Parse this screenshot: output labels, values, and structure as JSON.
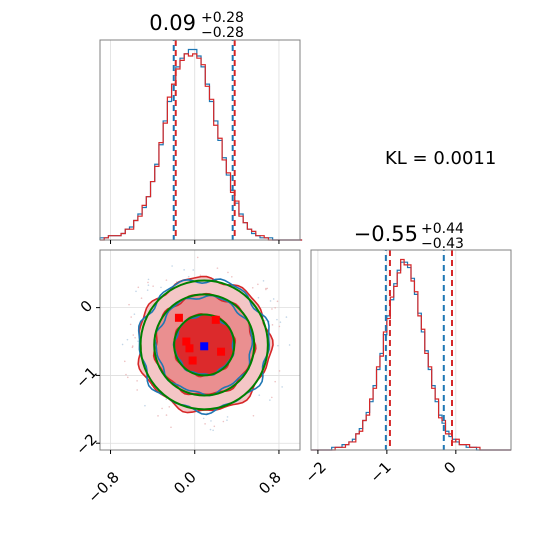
{
  "chart_data": [
    {
      "type": "histogram",
      "panel": "x-marginal",
      "title": {
        "value": "0.09",
        "plus": "+0.28",
        "minus": "−0.28"
      },
      "xlim": [
        -0.9,
        1.0
      ],
      "quantile_lines": {
        "blue": [
          -0.19,
          0.37
        ],
        "red": [
          -0.19,
          0.37
        ]
      },
      "series": [
        {
          "color": "#1f77b4",
          "bin_start": -0.9,
          "bin_width": 0.04,
          "counts": [
            1,
            1,
            2,
            2,
            2,
            3,
            5,
            6,
            9,
            12,
            15,
            20,
            27,
            35,
            44,
            55,
            64,
            72,
            80,
            84,
            86,
            88,
            88,
            85,
            80,
            72,
            64,
            55,
            46,
            38,
            30,
            23,
            17,
            12,
            8,
            5,
            3,
            2,
            1,
            1,
            1,
            0,
            0,
            0,
            0,
            0,
            0,
            0
          ]
        },
        {
          "color": "#d62728",
          "bin_start": -0.9,
          "bin_width": 0.04,
          "counts": [
            0,
            1,
            2,
            2,
            2,
            3,
            5,
            5,
            9,
            11,
            16,
            20,
            27,
            34,
            45,
            54,
            66,
            72,
            79,
            83,
            86,
            85,
            86,
            84,
            81,
            71,
            65,
            53,
            47,
            37,
            31,
            22,
            18,
            11,
            8,
            5,
            4,
            2,
            2,
            1,
            0,
            0,
            0,
            0,
            0,
            0,
            0,
            0
          ]
        }
      ]
    },
    {
      "type": "histogram",
      "panel": "y-marginal",
      "title": {
        "value": "−0.55",
        "plus": "+0.44",
        "minus": "−0.43"
      },
      "xlim": [
        -2.1,
        0.8
      ],
      "quantile_lines": {
        "blue": [
          -1.0,
          -0.16
        ],
        "red": [
          -0.97,
          -0.07
        ]
      },
      "series": [
        {
          "color": "#1f77b4",
          "bin_start": -2.1,
          "bin_width": 0.05,
          "counts": [
            0,
            0,
            0,
            0,
            0,
            0,
            1,
            1,
            1,
            2,
            2,
            3,
            4,
            6,
            8,
            11,
            14,
            18,
            24,
            30,
            36,
            43,
            50,
            56,
            62,
            67,
            70,
            70,
            68,
            64,
            58,
            51,
            44,
            37,
            30,
            24,
            18,
            13,
            10,
            7,
            5,
            4,
            3,
            2,
            2,
            1,
            1,
            1,
            0,
            0,
            0,
            0,
            0,
            0,
            0,
            0,
            0,
            0
          ]
        },
        {
          "color": "#d62728",
          "bin_start": -2.1,
          "bin_width": 0.05,
          "counts": [
            0,
            0,
            0,
            0,
            0,
            0,
            0,
            1,
            1,
            1,
            2,
            3,
            3,
            6,
            7,
            11,
            13,
            19,
            23,
            31,
            35,
            44,
            49,
            57,
            61,
            66,
            71,
            69,
            69,
            63,
            59,
            50,
            45,
            36,
            31,
            23,
            19,
            12,
            11,
            6,
            6,
            3,
            4,
            2,
            2,
            2,
            1,
            1,
            1,
            0,
            0,
            0,
            0,
            0,
            0,
            0,
            0,
            0
          ]
        }
      ]
    },
    {
      "type": "contour",
      "panel": "joint",
      "xlim": [
        -0.9,
        1.0
      ],
      "ylim": [
        -2.1,
        0.85
      ],
      "x_ticks": [
        "−0.8",
        "0.0",
        "0.8"
      ],
      "y_ticks": [
        "0",
        "−1",
        "−2"
      ],
      "center": {
        "x": 0.09,
        "y": -0.55
      },
      "spread": {
        "x": 0.28,
        "y": 0.44
      },
      "contour_levels_sigma": [
        1.0,
        1.6,
        2.0
      ],
      "series": [
        {
          "name": "",
          "color": "#d62728",
          "filled": true
        },
        {
          "name": "",
          "color": "#1f77b4",
          "filled": false
        },
        {
          "name": "",
          "color": "#008000",
          "filled": false
        }
      ],
      "markers": [
        {
          "color": "#0000ff",
          "x": 0.09,
          "y": -0.57
        },
        {
          "color": "#ff0000",
          "x": -0.15,
          "y": -0.15
        },
        {
          "color": "#ff0000",
          "x": 0.2,
          "y": -0.18
        },
        {
          "color": "#ff0000",
          "x": -0.08,
          "y": -0.5
        },
        {
          "color": "#ff0000",
          "x": -0.05,
          "y": -0.6
        },
        {
          "color": "#ff0000",
          "x": 0.25,
          "y": -0.65
        },
        {
          "color": "#ff0000",
          "x": -0.02,
          "y": -0.78
        }
      ]
    }
  ],
  "ticks": {
    "joint_x": [
      "−0.8",
      "0.0",
      "0.8"
    ],
    "joint_y": [
      "0",
      "−1",
      "−2"
    ],
    "marg_y_x": [
      "−2",
      "−1",
      "0"
    ]
  },
  "annotation": {
    "kl": "KL = 0.0011"
  },
  "titles": {
    "x_value": "0.09",
    "x_plus": "+0.28",
    "x_minus": "−0.28",
    "y_value": "−0.55",
    "y_plus": "+0.44",
    "y_minus": "−0.43"
  }
}
